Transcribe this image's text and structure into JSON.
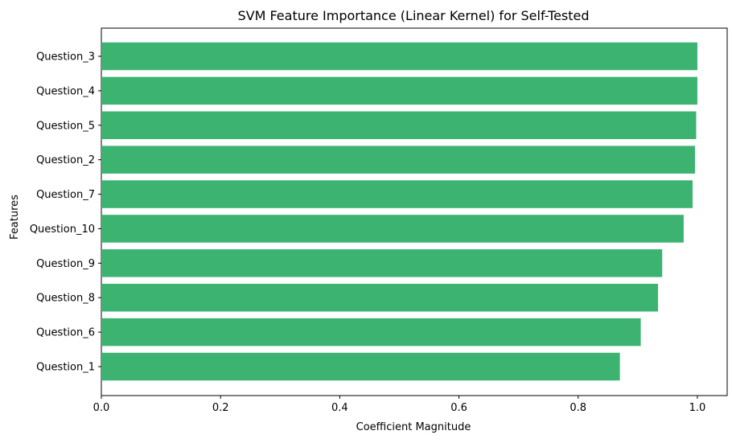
{
  "chart_data": {
    "type": "bar",
    "orientation": "horizontal",
    "title": "SVM Feature Importance (Linear Kernel) for Self-Tested",
    "xlabel": "Coefficient Magnitude",
    "ylabel": "Features",
    "categories": [
      "Question_3",
      "Question_4",
      "Question_5",
      "Question_2",
      "Question_7",
      "Question_10",
      "Question_9",
      "Question_8",
      "Question_6",
      "Question_1"
    ],
    "values": [
      1.0,
      1.0,
      0.998,
      0.996,
      0.992,
      0.977,
      0.941,
      0.934,
      0.905,
      0.87
    ],
    "xlim": [
      0,
      1.05
    ],
    "xticks": [
      "0.0",
      "0.2",
      "0.4",
      "0.6",
      "0.8",
      "1.0"
    ],
    "grid": false,
    "bar_color": "#3cb371"
  }
}
